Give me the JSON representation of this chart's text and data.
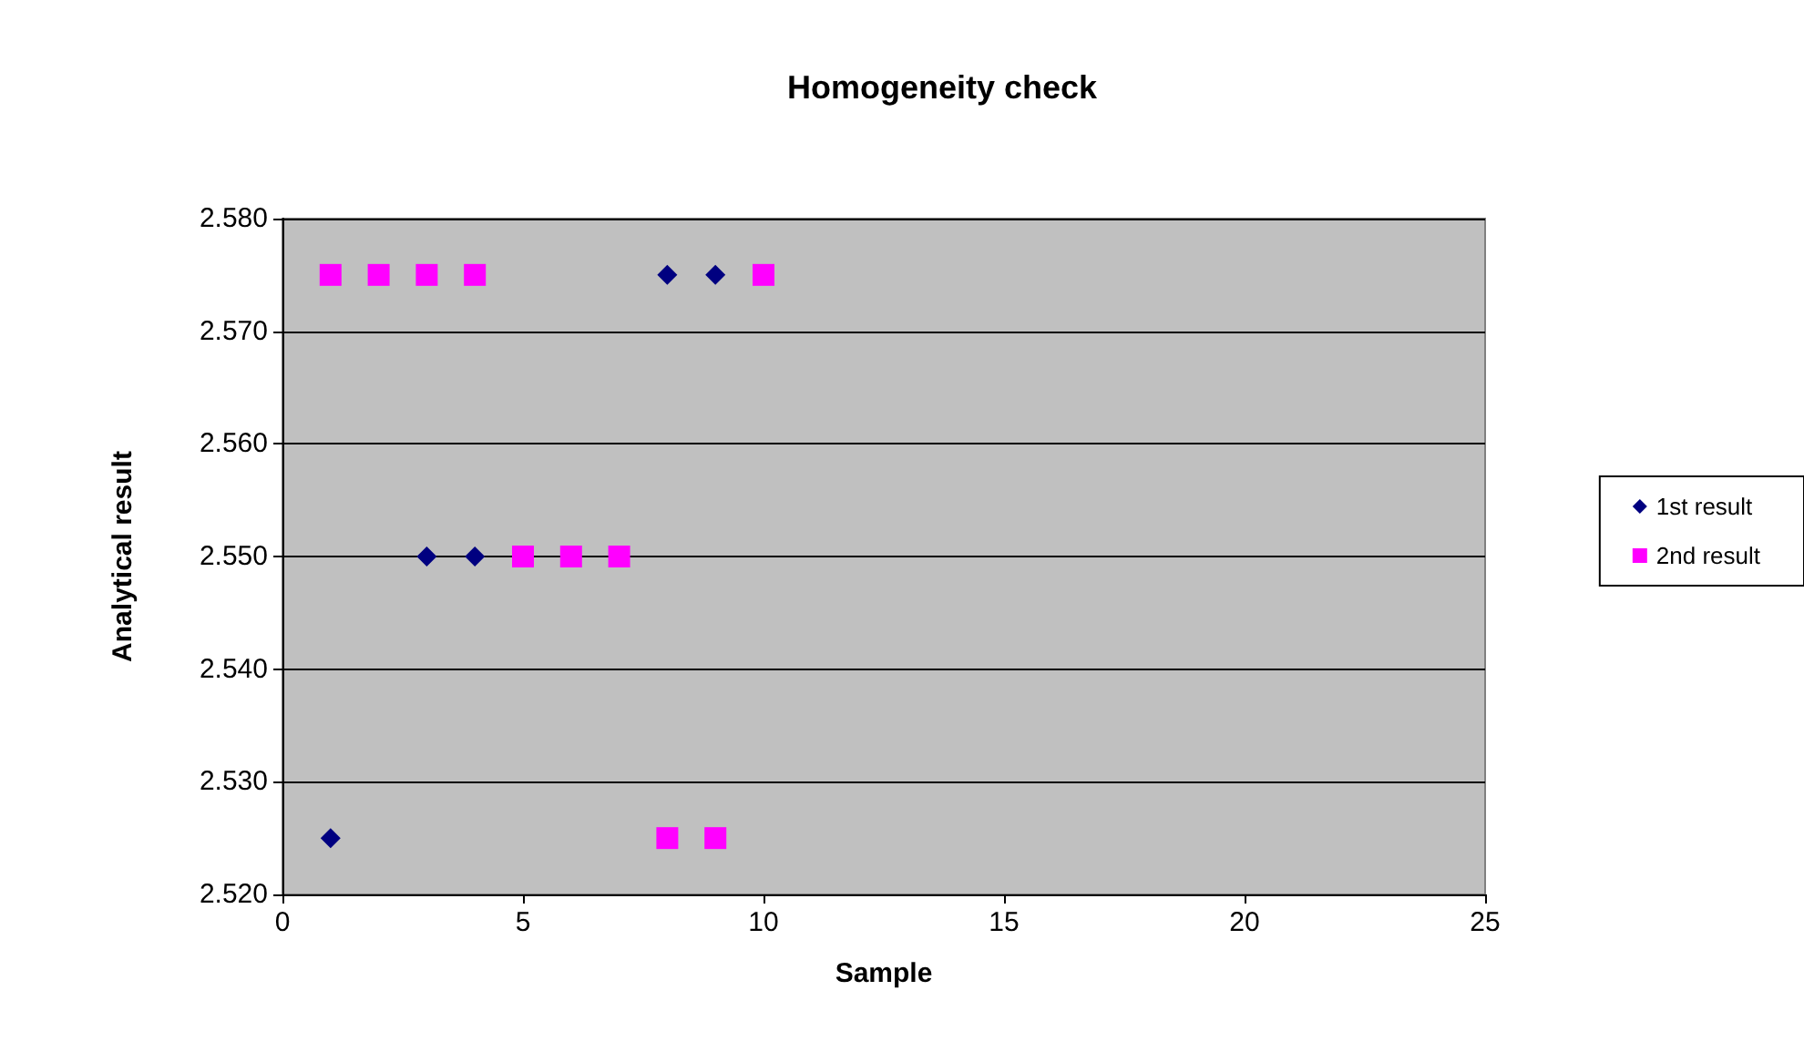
{
  "chart_data": {
    "type": "scatter",
    "title": "Homogeneity check",
    "xlabel": "Sample",
    "ylabel": "Analytical result",
    "x": [
      1,
      2,
      3,
      4,
      5,
      6,
      7,
      8,
      9,
      10
    ],
    "series": [
      {
        "name": "1st result",
        "color": "#000080",
        "marker": "diamond",
        "values": [
          2.525,
          null,
          2.55,
          2.55,
          null,
          null,
          null,
          2.575,
          2.575,
          null
        ]
      },
      {
        "name": "2nd result",
        "color": "#ff00ff",
        "marker": "square",
        "values": [
          2.575,
          2.575,
          2.575,
          2.575,
          2.55,
          2.55,
          2.55,
          2.525,
          2.525,
          2.575
        ]
      }
    ],
    "xlim": [
      0,
      25
    ],
    "xticks": [
      0,
      5,
      10,
      15,
      20,
      25
    ],
    "ylim": [
      2.52,
      2.58
    ],
    "yticks": [
      {
        "value": 2.52,
        "label": "2.520"
      },
      {
        "value": 2.53,
        "label": "2.530"
      },
      {
        "value": 2.54,
        "label": "2.540"
      },
      {
        "value": 2.55,
        "label": "2.550"
      },
      {
        "value": 2.56,
        "label": "2.560"
      },
      {
        "value": 2.57,
        "label": "2.570"
      },
      {
        "value": 2.58,
        "label": "2.580"
      }
    ],
    "grid": "y",
    "legend": "right"
  }
}
